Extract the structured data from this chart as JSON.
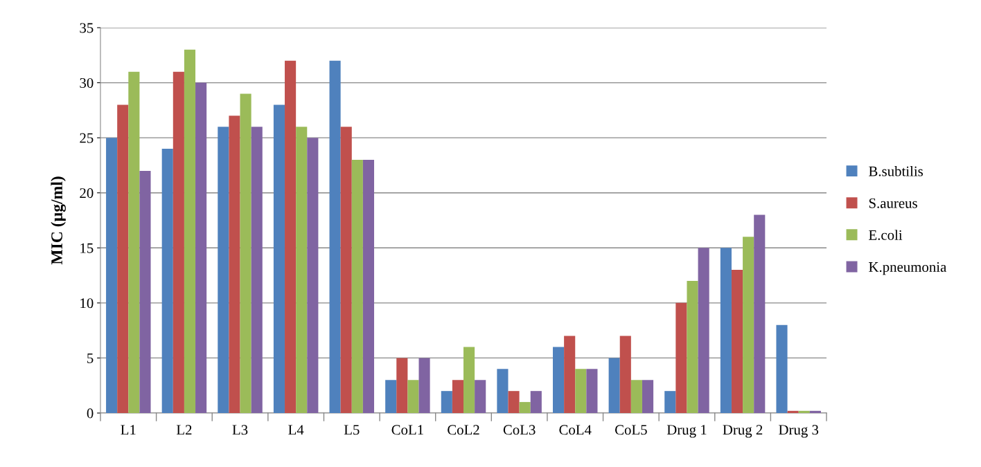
{
  "chart_data": {
    "type": "bar",
    "ylabel": "MIC (µg/ml)",
    "categories": [
      "L1",
      "L2",
      "L3",
      "L4",
      "L5",
      "CoL1",
      "CoL2",
      "CoL3",
      "CoL4",
      "CoL5",
      "Drug 1",
      "Drug 2",
      "Drug 3"
    ],
    "series": [
      {
        "name": "B.subtilis",
        "color": "#4f81bd",
        "values": [
          25,
          24,
          26,
          28,
          32,
          3,
          2,
          4,
          6,
          5,
          2,
          15,
          8
        ]
      },
      {
        "name": "S.aureus",
        "color": "#c0504d",
        "values": [
          28,
          31,
          27,
          32,
          26,
          5,
          3,
          2,
          7,
          7,
          10,
          13,
          0.2
        ]
      },
      {
        "name": "E.coli",
        "color": "#9bbb59",
        "values": [
          31,
          33,
          29,
          26,
          23,
          3,
          6,
          1,
          4,
          3,
          12,
          16,
          0.2
        ]
      },
      {
        "name": "K.pneumonia",
        "color": "#8064a2",
        "values": [
          22,
          30,
          26,
          25,
          23,
          5,
          3,
          2,
          4,
          3,
          15,
          18,
          0.2
        ]
      }
    ],
    "ylim": [
      0,
      35
    ],
    "yticks": [
      0,
      5,
      10,
      15,
      20,
      25,
      30,
      35
    ],
    "grid": "y",
    "legend": "right"
  }
}
